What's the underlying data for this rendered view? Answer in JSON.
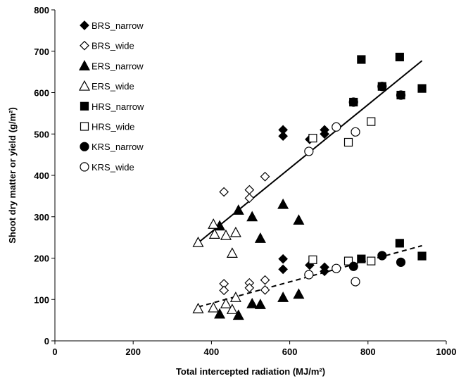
{
  "chart_data": {
    "type": "scatter",
    "title": "",
    "xlabel": "Total intercepted radiation (MJ/m²)",
    "ylabel": "Shoot dry matter or yield (g/m²)",
    "xlim": [
      0,
      1000
    ],
    "ylim": [
      0,
      800
    ],
    "x_ticks": [
      "0",
      "200",
      "400",
      "600",
      "800",
      "1000"
    ],
    "y_ticks": [
      "0",
      "100",
      "200",
      "300",
      "400",
      "500",
      "600",
      "700",
      "800"
    ],
    "grid": false,
    "legend_position": "top-left",
    "series": [
      {
        "name": "BRS_narrow",
        "marker": "diamond-filled",
        "points": [
          [
            583,
            510
          ],
          [
            583,
            495
          ],
          [
            651,
            487
          ],
          [
            689,
            510
          ],
          [
            689,
            500
          ],
          [
            583,
            198
          ],
          [
            583,
            173
          ],
          [
            651,
            183
          ],
          [
            689,
            178
          ],
          [
            689,
            168
          ]
        ]
      },
      {
        "name": "BRS_wide",
        "marker": "diamond-open",
        "points": [
          [
            432,
            360
          ],
          [
            497,
            365
          ],
          [
            497,
            345
          ],
          [
            537,
            397
          ],
          [
            432,
            138
          ],
          [
            432,
            122
          ],
          [
            497,
            140
          ],
          [
            497,
            128
          ],
          [
            537,
            147
          ],
          [
            537,
            123
          ]
        ]
      },
      {
        "name": "ERS_narrow",
        "marker": "triangle-filled",
        "points": [
          [
            421,
            278
          ],
          [
            469,
            316
          ],
          [
            504,
            300
          ],
          [
            525,
            248
          ],
          [
            583,
            330
          ],
          [
            623,
            292
          ],
          [
            421,
            65
          ],
          [
            469,
            62
          ],
          [
            504,
            90
          ],
          [
            525,
            88
          ],
          [
            583,
            105
          ],
          [
            623,
            113
          ]
        ]
      },
      {
        "name": "ERS_wide",
        "marker": "triangle-open",
        "points": [
          [
            366,
            238
          ],
          [
            405,
            282
          ],
          [
            408,
            258
          ],
          [
            437,
            255
          ],
          [
            453,
            212
          ],
          [
            462,
            262
          ],
          [
            366,
            78
          ],
          [
            405,
            80
          ],
          [
            437,
            90
          ],
          [
            453,
            76
          ],
          [
            462,
            105
          ]
        ]
      },
      {
        "name": "HRS_narrow",
        "marker": "square-filled",
        "points": [
          [
            763,
            577
          ],
          [
            783,
            680
          ],
          [
            836,
            615
          ],
          [
            881,
            686
          ],
          [
            884,
            594
          ],
          [
            938,
            610
          ],
          [
            783,
            198
          ],
          [
            881,
            236
          ],
          [
            938,
            205
          ]
        ]
      },
      {
        "name": "HRS_wide",
        "marker": "square-open",
        "points": [
          [
            659,
            490
          ],
          [
            750,
            480
          ],
          [
            808,
            530
          ],
          [
            659,
            196
          ],
          [
            750,
            193
          ],
          [
            808,
            193
          ]
        ]
      },
      {
        "name": "KRS_narrow",
        "marker": "circle-filled",
        "points": [
          [
            763,
            577
          ],
          [
            836,
            615
          ],
          [
            884,
            594
          ],
          [
            763,
            180
          ],
          [
            836,
            206
          ],
          [
            884,
            190
          ]
        ]
      },
      {
        "name": "KRS_wide",
        "marker": "circle-open",
        "points": [
          [
            649,
            458
          ],
          [
            719,
            517
          ],
          [
            768,
            505
          ],
          [
            649,
            160
          ],
          [
            719,
            175
          ],
          [
            768,
            143
          ]
        ]
      }
    ],
    "trendlines": [
      {
        "style": "solid",
        "x": [
          366,
          938
        ],
        "y": [
          237,
          677
        ]
      },
      {
        "style": "dashed",
        "x": [
          366,
          938
        ],
        "y": [
          82,
          230
        ]
      }
    ]
  }
}
